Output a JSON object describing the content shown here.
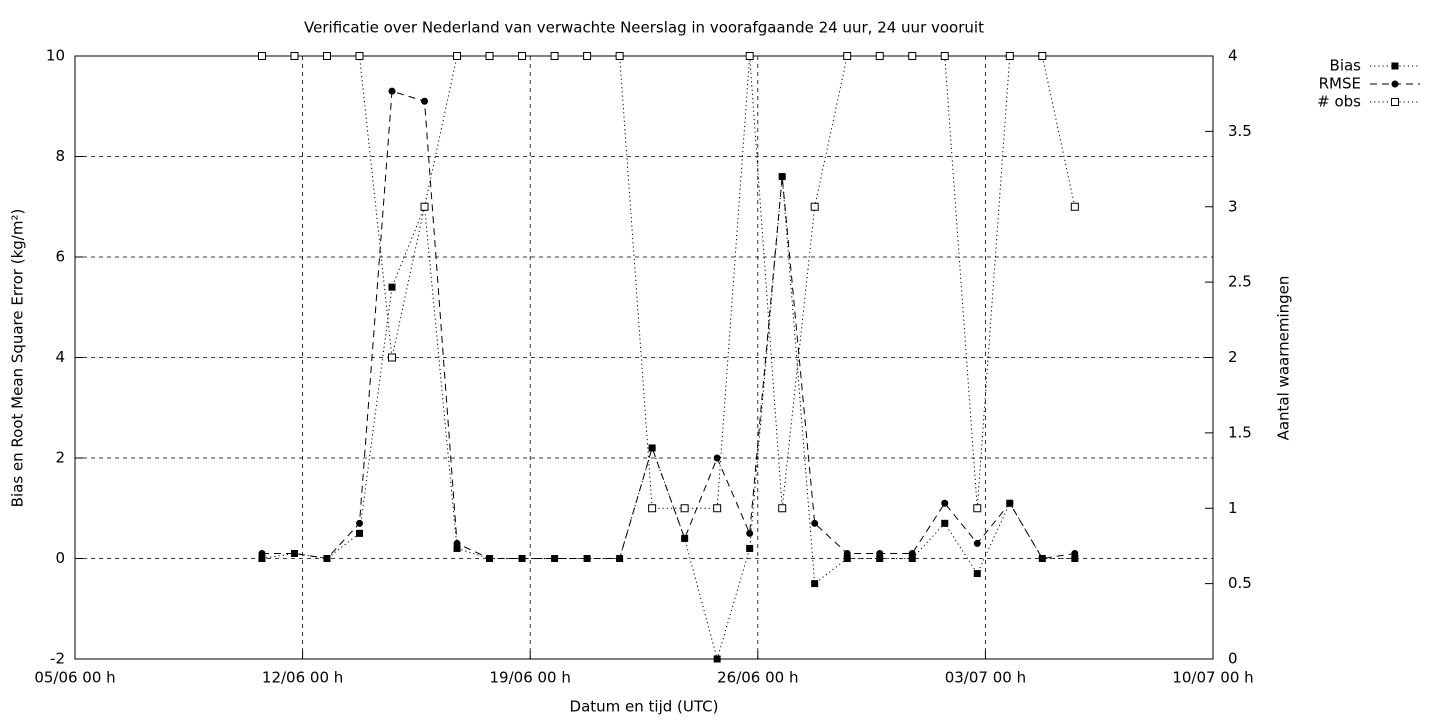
{
  "chart_data": {
    "type": "line",
    "title": "Verificatie over Nederland van verwachte Neerslag in voorafgaande 24 uur, 24 uur vooruit",
    "xlabel": "Datum en tijd (UTC)",
    "ylabel": "Bias en Root Mean Square Error (kg/m²)",
    "y2label": "Aantal waarnemingen",
    "x": [
      5.75,
      6.75,
      7.75,
      8.75,
      9.75,
      10.75,
      11.75,
      12.75,
      13.75,
      14.75,
      15.75,
      16.75,
      17.75,
      18.75,
      19.75,
      20.75,
      21.75,
      22.75,
      23.75,
      24.75,
      25.75,
      26.75,
      27.75,
      28.75,
      29.75,
      30.75
    ],
    "series": [
      {
        "name": "Bias",
        "color": "#000000",
        "line": "dotted",
        "marker": "square-filled",
        "values": [
          0,
          0.1,
          0,
          0.5,
          5.4,
          7.0,
          0.2,
          0,
          0,
          0,
          0,
          0,
          2.2,
          0.4,
          -2,
          0.2,
          7.6,
          -0.5,
          0,
          0,
          0,
          0.7,
          -0.3,
          1.1,
          0,
          0
        ]
      },
      {
        "name": "RMSE",
        "color": "#000000",
        "line": "dashed",
        "marker": "circle-filled",
        "values": [
          0.1,
          0.1,
          0,
          0.7,
          9.3,
          9.1,
          0.3,
          0,
          0,
          0,
          0,
          0,
          2.2,
          0.4,
          2.0,
          0.5,
          7.6,
          0.7,
          0.1,
          0.1,
          0.1,
          1.1,
          0.3,
          1.1,
          0,
          0.1
        ]
      },
      {
        "name": "# obs",
        "color": "#000000",
        "line": "dotted",
        "marker": "square-open",
        "axis": "y2",
        "values": [
          4,
          4,
          4,
          4,
          2,
          3,
          4,
          4,
          4,
          4,
          4,
          4,
          1,
          1,
          1,
          4,
          1,
          3,
          4,
          4,
          4,
          4,
          1,
          4,
          4,
          3
        ]
      }
    ],
    "xlim": [
      0,
      35
    ],
    "xticks": [
      {
        "value": 0,
        "label": "05/06 00 h"
      },
      {
        "value": 7,
        "label": "12/06 00 h"
      },
      {
        "value": 14,
        "label": "19/06 00 h"
      },
      {
        "value": 21,
        "label": "26/06 00 h"
      },
      {
        "value": 28,
        "label": "03/07 00 h"
      },
      {
        "value": 35,
        "label": "10/07 00 h"
      }
    ],
    "ylim": [
      -2,
      10
    ],
    "yticks": [
      -2,
      0,
      2,
      4,
      6,
      8,
      10
    ],
    "y2lim": [
      0,
      4
    ],
    "y2ticks": [
      0,
      0.5,
      1,
      1.5,
      2,
      2.5,
      3,
      3.5,
      4
    ],
    "grid": true,
    "legend": "outside-right"
  }
}
